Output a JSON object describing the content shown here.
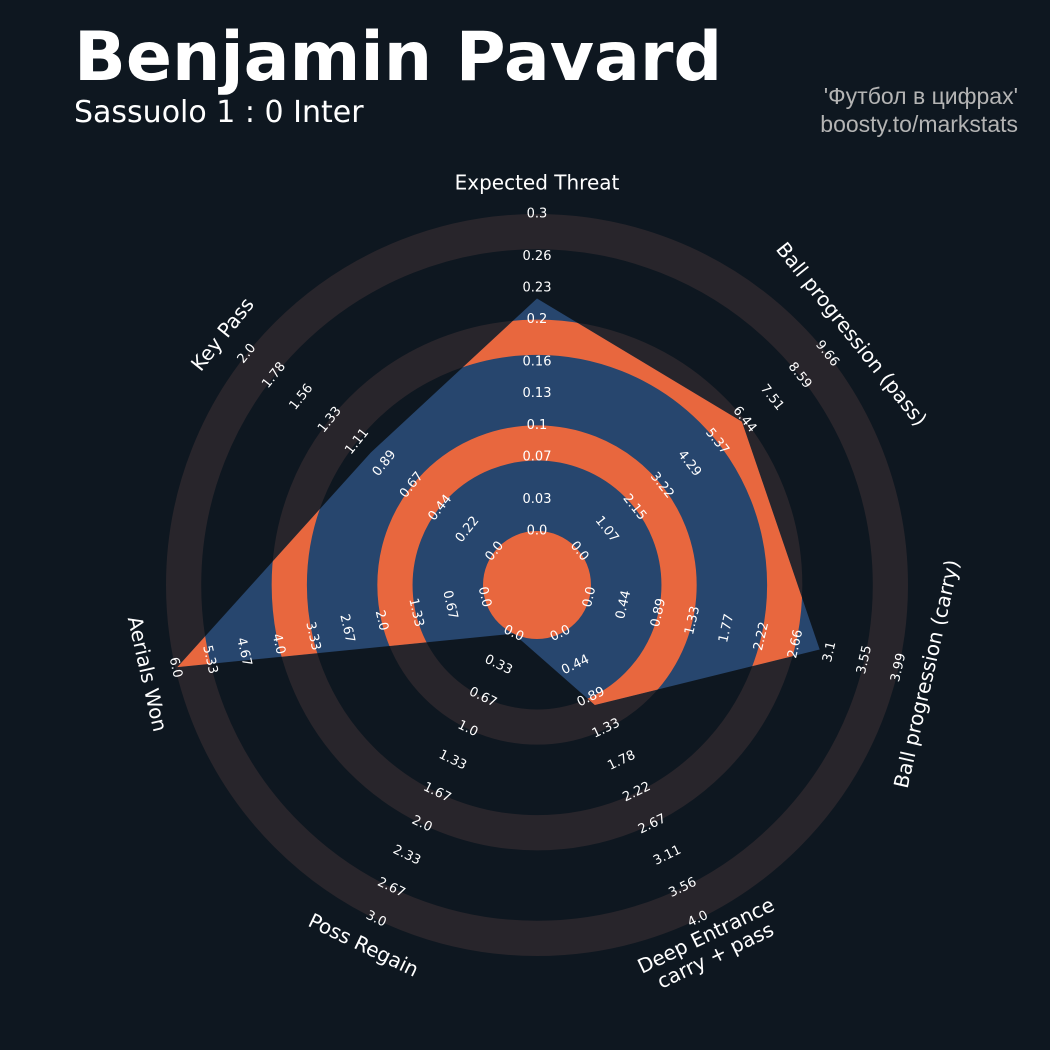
{
  "chart_data": {
    "type": "radar",
    "title": "Benjamin Pavard",
    "subtitle": "Sassuolo 1 : 0 Inter",
    "annotations": [
      "'Футбол в цифрах'",
      "boosty.to/markstats"
    ],
    "color": "#27466e",
    "ring_color": "#e8673e",
    "axes": [
      {
        "label": "Expected Threat",
        "lim": [
          0,
          0.3
        ],
        "ticks": [
          {
            "value": 0,
            "label": "0.0"
          },
          0.03,
          0.07,
          0.1,
          0.13,
          0.16,
          0.2,
          0.23,
          0.26,
          0.3
        ]
      },
      {
        "label": "Ball progression (pass)",
        "lim": [
          0,
          9.66
        ],
        "ticks": [
          {
            "value": 0,
            "label": "0.0"
          },
          1.07,
          2.15,
          3.22,
          4.29,
          5.37,
          6.44,
          7.51,
          8.59,
          9.66
        ]
      },
      {
        "label": "Ball progression (carry)",
        "lim": [
          0,
          3.99
        ],
        "ticks": [
          {
            "value": 0,
            "label": "0.0"
          },
          0.44,
          0.89,
          1.33,
          1.77,
          2.22,
          2.66,
          3.1,
          3.55,
          3.99
        ]
      },
      {
        "label": [
          "Deep Entrance",
          "carry + pass"
        ],
        "lim": [
          0,
          4
        ],
        "ticks": [
          {
            "value": 0,
            "label": "0.0"
          },
          0.44,
          0.89,
          1.33,
          1.78,
          2.22,
          2.67,
          3.11,
          3.56,
          {
            "value": 4,
            "label": "4.0"
          }
        ]
      },
      {
        "label": "Poss Regain",
        "lim": [
          0,
          3
        ],
        "ticks": [
          {
            "value": 0,
            "label": "0.0"
          },
          0.33,
          0.67,
          {
            "value": 1,
            "label": "1.0"
          },
          1.33,
          1.67,
          {
            "value": 2,
            "label": "2.0"
          },
          2.33,
          2.67,
          {
            "value": 3,
            "label": "3.0"
          }
        ]
      },
      {
        "label": "Aerials Won",
        "lim": [
          0,
          6
        ],
        "ticks": [
          {
            "value": 0,
            "label": "0.0"
          },
          0.67,
          1.33,
          {
            "value": 2,
            "label": "2.0"
          },
          2.67,
          3.33,
          {
            "value": 4,
            "label": "4.0"
          },
          4.67,
          5.33,
          {
            "value": 6,
            "label": "6.0"
          }
        ]
      },
      {
        "label": "Key Pass",
        "lim": [
          0,
          2
        ],
        "ticks": [
          {
            "value": 0,
            "label": "0.0"
          },
          0.22,
          0.44,
          0.67,
          0.89,
          1.11,
          1.33,
          1.56,
          1.78,
          {
            "value": 2,
            "label": "2.0"
          }
        ]
      }
    ],
    "values": [
      0.22,
      6.34,
      2.97,
      1.0,
      0,
      5.96,
      1.0
    ]
  }
}
